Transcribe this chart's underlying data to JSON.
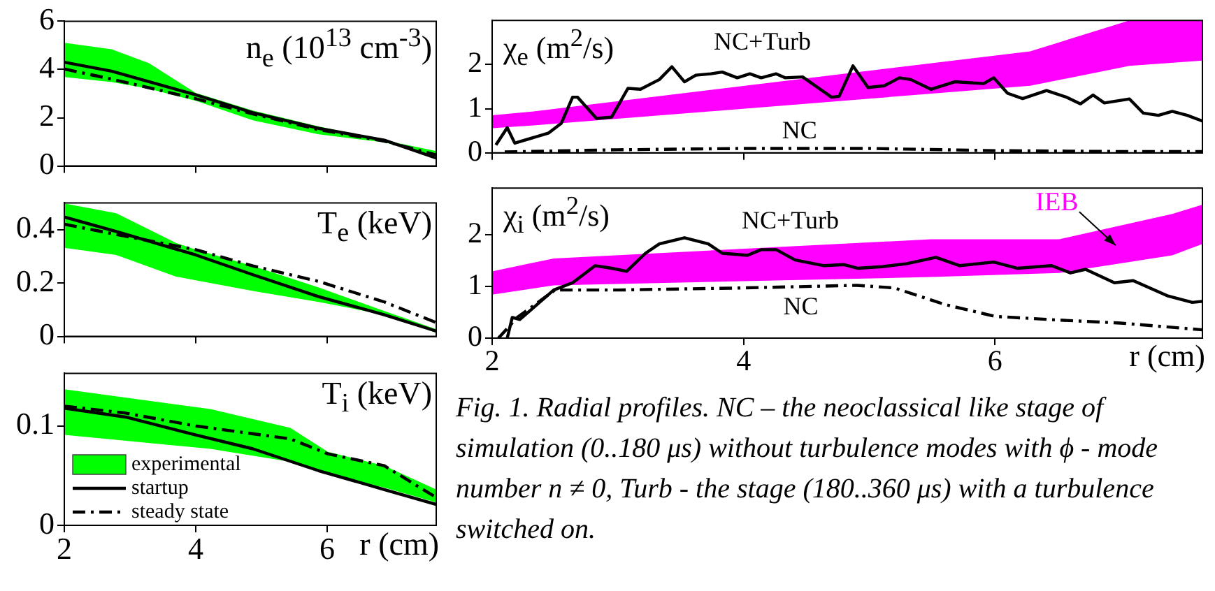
{
  "chart_data": [
    {
      "type": "line",
      "title": "n$_{e}$ (10$^{13}$ cm$^{-3}$)",
      "xlim": [
        2,
        7.66
      ],
      "xticks": [
        2,
        4,
        6
      ],
      "ylim": [
        0,
        6
      ],
      "yticks": [
        0,
        2,
        4,
        6
      ],
      "tick_labels": "y",
      "grid": false,
      "series": [
        {
          "type": "area",
          "color": "#00ff00",
          "x": [
            2,
            2.72,
            3.29,
            4,
            4.87,
            5.87,
            6.87,
            7.66
          ],
          "values": [
            null,
            null,
            null,
            null,
            null,
            null,
            null,
            null
          ],
          "upper": [
            5.11,
            4.84,
            4.26,
            3.03,
            2.3,
            1.64,
            1.07,
            0.62
          ],
          "lower": [
            3.69,
            3.48,
            3.2,
            2.7,
            1.89,
            1.31,
            0.98,
            0.41
          ]
        },
        {
          "type": "line",
          "color": "#000000",
          "line_style": "solid",
          "x": [
            2,
            2.72,
            4,
            4.87,
            5.87,
            6.87,
            7.66
          ],
          "values": [
            4.3,
            3.93,
            2.95,
            2.21,
            1.56,
            1.07,
            0.33
          ]
        },
        {
          "type": "line",
          "color": "#000000",
          "line_style": "dashed",
          "x": [
            2,
            2.72,
            4,
            4.87,
            5.87,
            6.87,
            7.66
          ],
          "values": [
            4.02,
            3.6,
            2.79,
            2.16,
            1.51,
            1.03,
            0.46
          ]
        }
      ]
    },
    {
      "type": "line",
      "title": "T$_{e}$ (keV)",
      "xlim": [
        2,
        7.66
      ],
      "xticks": [
        2,
        4,
        6
      ],
      "ylim": [
        0,
        0.5
      ],
      "yticks": [
        0,
        0.2,
        0.4
      ],
      "tick_labels": "y",
      "grid": false,
      "series": [
        {
          "type": "area",
          "color": "#00ff00",
          "x": [
            2,
            2.79,
            3.7,
            4,
            4.87,
            5.87,
            6.87,
            7.66
          ],
          "values": [
            null,
            null,
            null,
            null,
            null,
            null,
            null,
            null
          ],
          "upper": [
            0.498,
            0.461,
            0.35,
            0.325,
            0.264,
            0.183,
            0.095,
            0.027
          ],
          "lower": [
            0.332,
            0.305,
            0.224,
            0.21,
            0.17,
            0.129,
            0.081,
            0.014
          ]
        },
        {
          "type": "line",
          "color": "#000000",
          "line_style": "solid",
          "x": [
            2,
            2.79,
            4,
            4.87,
            5.87,
            6.87,
            7.66
          ],
          "values": [
            0.447,
            0.393,
            0.305,
            0.231,
            0.149,
            0.081,
            0.02
          ]
        },
        {
          "type": "line",
          "color": "#000000",
          "line_style": "dashed",
          "x": [
            2,
            2.79,
            4,
            4.87,
            5.87,
            6.87,
            7.66
          ],
          "values": [
            0.42,
            0.382,
            0.325,
            0.264,
            0.206,
            0.129,
            0.052
          ]
        }
      ]
    },
    {
      "type": "line",
      "title": "T$_{i}$ (keV)",
      "xlabel": "r (cm)",
      "xlim": [
        2,
        7.66
      ],
      "xticks": [
        2,
        4,
        6
      ],
      "ylim": [
        0,
        0.153
      ],
      "yticks": [
        0,
        0.1
      ],
      "grid": false,
      "legend": "bottom left",
      "series": [
        {
          "type": "area",
          "name": "experimental",
          "color": "#00ff00",
          "x": [
            2,
            4.22,
            5.44,
            6.01,
            6.87,
            7.66
          ],
          "values": [
            null,
            null,
            null,
            null,
            null,
            null
          ],
          "upper": [
            0.137,
            0.117,
            0.098,
            0.074,
            0.06,
            0.036
          ],
          "lower": [
            0.091,
            0.077,
            0.064,
            0.051,
            0.038,
            0.023
          ]
        },
        {
          "type": "line",
          "name": "startup",
          "color": "#000000",
          "line_style": "solid",
          "x": [
            2,
            2.93,
            4,
            4.87,
            5.87,
            6.87,
            7.66
          ],
          "values": [
            0.118,
            0.109,
            0.091,
            0.077,
            0.055,
            0.036,
            0.021
          ]
        },
        {
          "type": "line",
          "name": "steady state",
          "color": "#000000",
          "line_style": "dashed",
          "x": [
            2,
            2.93,
            4,
            5.44,
            6.01,
            6.87,
            7.66
          ],
          "values": [
            0.12,
            0.113,
            0.1,
            0.087,
            0.072,
            0.06,
            0.028
          ]
        }
      ]
    },
    {
      "type": "line",
      "title": "χ$_{e}$ (m$^{2}$/s)",
      "xlim": [
        2,
        7.65
      ],
      "xticks": [
        2,
        4,
        6
      ],
      "ylim": [
        0,
        3
      ],
      "yticks": [
        0,
        1,
        2
      ],
      "tick_labels": "y",
      "grid": false,
      "series": [
        {
          "type": "area",
          "color": "#ff00ff",
          "x": [
            2,
            2.33,
            6.28,
            7.07,
            7.65
          ],
          "values": [
            null,
            null,
            null,
            null,
            null
          ],
          "upper": [
            0.85,
            0.94,
            2.3,
            3,
            3
          ],
          "lower": [
            0.56,
            0.62,
            1.52,
            1.97,
            2.09
          ]
        },
        {
          "type": "line",
          "color": "#000000",
          "line_style": "solid",
          "x": [
            2.03,
            2.12,
            2.18,
            2.45,
            2.55,
            2.64,
            2.68,
            2.83,
            2.95,
            3.08,
            3.18,
            3.33,
            3.43,
            3.53,
            3.62,
            3.74,
            3.83,
            3.95,
            4.05,
            4.14,
            4.26,
            4.33,
            4.47,
            4.57,
            4.7,
            4.76,
            4.87,
            4.99,
            5.12,
            5.24,
            5.33,
            5.49,
            5.68,
            5.91,
            5.99,
            6.1,
            6.22,
            6.41,
            6.57,
            6.68,
            6.78,
            6.87,
            7.07,
            7.18,
            7.3,
            7.41,
            7.53,
            7.65
          ],
          "values": [
            0.18,
            0.57,
            0.22,
            0.45,
            0.67,
            1.26,
            1.26,
            0.78,
            0.81,
            1.46,
            1.44,
            1.66,
            1.95,
            1.61,
            1.76,
            1.79,
            1.83,
            1.7,
            1.79,
            1.7,
            1.79,
            1.7,
            1.72,
            1.52,
            1.26,
            1.28,
            1.97,
            1.48,
            1.52,
            1.7,
            1.66,
            1.44,
            1.61,
            1.57,
            1.7,
            1.35,
            1.23,
            1.41,
            1.26,
            1.11,
            1.31,
            1.13,
            1.22,
            0.9,
            0.85,
            0.94,
            0.85,
            0.72
          ]
        },
        {
          "type": "line",
          "color": "#000000",
          "line_style": "dashed",
          "x": [
            2.1,
            3,
            4,
            5,
            6,
            7,
            7.65
          ],
          "values": [
            0.02,
            0.07,
            0.1,
            0.1,
            0.05,
            0.03,
            0.03
          ]
        }
      ],
      "annotations": [
        {
          "text": "NC+Turb",
          "x": 4.26,
          "y": 1.79
        },
        {
          "text": "NC",
          "x": 4,
          "y": 0.1
        }
      ]
    },
    {
      "type": "line",
      "title": "χ$_{i}$ (m$^{2}$/s)",
      "xlabel": "r (cm)",
      "xlim": [
        2,
        7.65
      ],
      "xticks": [
        2,
        4,
        6
      ],
      "ylim": [
        0,
        2.9
      ],
      "yticks": [
        0,
        1,
        2
      ],
      "grid": false,
      "series": [
        {
          "type": "area",
          "color": "#ff00ff",
          "x": [
            2,
            2.49,
            5.49,
            6.51,
            7.41,
            7.65
          ],
          "values": [
            null,
            null,
            null,
            null,
            null,
            null
          ],
          "upper": [
            1.29,
            1.54,
            1.91,
            1.91,
            2.4,
            2.58
          ],
          "lower": [
            0.84,
            1.02,
            1.18,
            1.26,
            1.6,
            1.82
          ]
        },
        {
          "type": "line",
          "color": "#000000",
          "line_style": "solid",
          "x": [
            2.12,
            2.16,
            2.22,
            2.49,
            2.64,
            2.82,
            2.95,
            3.07,
            3.22,
            3.33,
            3.53,
            3.72,
            3.83,
            4.03,
            4.14,
            4.26,
            4.41,
            4.64,
            4.8,
            4.91,
            5.1,
            5.3,
            5.53,
            5.72,
            5.99,
            6.18,
            6.45,
            6.6,
            6.72,
            6.95,
            7.1,
            7.37,
            7.57,
            7.65
          ],
          "values": [
            0,
            0.4,
            0.36,
            0.93,
            1.07,
            1.4,
            1.35,
            1.29,
            1.64,
            1.82,
            1.94,
            1.82,
            1.64,
            1.6,
            1.71,
            1.71,
            1.51,
            1.4,
            1.42,
            1.35,
            1.38,
            1.44,
            1.56,
            1.4,
            1.47,
            1.35,
            1.4,
            1.26,
            1.33,
            1.07,
            1.11,
            0.82,
            0.69,
            0.71
          ]
        },
        {
          "type": "line",
          "color": "#000000",
          "line_style": "dashed",
          "x": [
            2.05,
            2.2,
            2.5,
            3,
            4,
            4.9,
            5.2,
            5.6,
            6,
            6.5,
            7,
            7.65
          ],
          "values": [
            0,
            0.4,
            0.93,
            0.93,
            0.97,
            1.02,
            0.97,
            0.65,
            0.42,
            0.35,
            0.29,
            0.16
          ]
        }
      ],
      "annotations": [
        {
          "text": "NC+Turb",
          "x": 4.26,
          "y": 1.71
        },
        {
          "text": "NC",
          "x": 4.9,
          "y": 1.02
        },
        "IEB",
        "Fig. 1. Radial profiles. NC – the neoclassical like stage of simulation (0..180 μs) without turbulence modes with ϕ - mode number n ≠ 0, Turb - the stage (180..360 μs) with a turbulence switched on."
      ]
    }
  ]
}
